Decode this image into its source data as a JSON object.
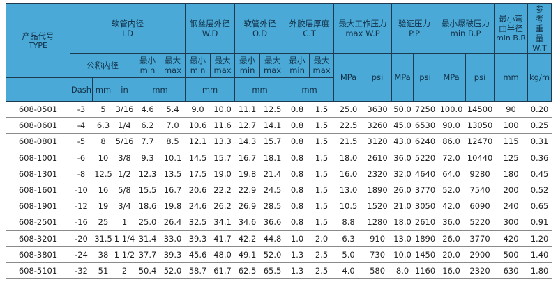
{
  "header": {
    "type_cn": "产品代号",
    "type_en": "TYPE",
    "id_cn": "软管内径",
    "id_en": "I.D",
    "wd_cn": "钢丝层外径",
    "wd_en": "W.D",
    "od_cn": "软管外径",
    "od_en": "O.D",
    "ct_cn": "外胶层厚度",
    "ct_en": "C.T",
    "wp_cn": "最大工作压力",
    "wp_en": "max W.P",
    "pp_cn": "验证压力",
    "pp_en": "P.P",
    "bp_cn": "最小爆破压力",
    "bp_en": "min B.P",
    "br_cn": "最小弯曲半径",
    "br_en": "min B.R",
    "wt_cn": "参考重量",
    "wt_en": "W.T",
    "nominal_cn": "公称内径",
    "min_cn": "最小",
    "min_en": "min",
    "max_cn": "最大",
    "max_en": "max",
    "dash": "Dash",
    "mm": "mm",
    "in": "in",
    "mpa": "MPa",
    "psi": "psi",
    "kgm": "kg/m"
  },
  "rows": [
    [
      "608-0501",
      "-3",
      "5",
      "3/16",
      "4.6",
      "5.4",
      "9.0",
      "10.0",
      "11.1",
      "12.5",
      "0.8",
      "1.5",
      "25.0",
      "3630",
      "50.0",
      "7250",
      "100.0",
      "14500",
      "90",
      "0.20"
    ],
    [
      "608-0601",
      "-4",
      "6.3",
      "1/4",
      "6.2",
      "7.0",
      "10.6",
      "11.6",
      "12.7",
      "14.1",
      "0.8",
      "1.5",
      "22.5",
      "3260",
      "45.0",
      "6530",
      "90.0",
      "13050",
      "100",
      "0.25"
    ],
    [
      "608-0801",
      "-5",
      "8",
      "5/16",
      "7.7",
      "8.5",
      "12.1",
      "13.3",
      "14.3",
      "15.7",
      "0.8",
      "1.5",
      "21.5",
      "3120",
      "43.0",
      "6240",
      "86.0",
      "12470",
      "115",
      "0.31"
    ],
    [
      "608-1001",
      "-6",
      "10",
      "3/8",
      "9.3",
      "10.1",
      "14.5",
      "15.7",
      "16.7",
      "18.1",
      "0.8",
      "1.5",
      "18.0",
      "2610",
      "36.0",
      "5220",
      "72.0",
      "10440",
      "125",
      "0.36"
    ],
    [
      "608-1301",
      "-8",
      "12.5",
      "1/2",
      "12.3",
      "13.5",
      "17.5",
      "19.0",
      "19.8",
      "21.4",
      "0.8",
      "1.5",
      "16.0",
      "2320",
      "32.0",
      "4640",
      "64.0",
      "9280",
      "180",
      "0.45"
    ],
    [
      "608-1601",
      "-10",
      "16",
      "5/8",
      "15.5",
      "16.7",
      "20.6",
      "22.2",
      "22.9",
      "24.5",
      "0.8",
      "1.5",
      "13.0",
      "1890",
      "26.0",
      "3770",
      "52.0",
      "7540",
      "200",
      "0.52"
    ],
    [
      "608-1901",
      "-12",
      "19",
      "3/4",
      "18.6",
      "19.8",
      "24.6",
      "26.2",
      "26.9",
      "28.5",
      "0.8",
      "1.5",
      "10.5",
      "1520",
      "21.0",
      "3050",
      "42.0",
      "6090",
      "240",
      "0.65"
    ],
    [
      "608-2501",
      "-16",
      "25",
      "1",
      "25.0",
      "26.4",
      "32.5",
      "34.1",
      "34.6",
      "36.6",
      "0.8",
      "1.5",
      "8.8",
      "1280",
      "18.0",
      "2610",
      "36.0",
      "5220",
      "300",
      "0.91"
    ],
    [
      "608-3201",
      "-20",
      "31.5",
      "1 1/4",
      "31.4",
      "33.0",
      "39.3",
      "41.7",
      "42.2",
      "44.8",
      "1.0",
      "2.0",
      "6.3",
      "910",
      "13.0",
      "1890",
      "26.0",
      "3770",
      "420",
      "1.20"
    ],
    [
      "608-3801",
      "-24",
      "38",
      "1 1/2",
      "37.7",
      "39.3",
      "45.6",
      "48.0",
      "49.1",
      "52.0",
      "1.3",
      "2.5",
      "5.0",
      "730",
      "10.0",
      "1450",
      "20.0",
      "2900",
      "500",
      "1.40"
    ],
    [
      "608-5101",
      "-32",
      "51",
      "2",
      "50.4",
      "52.0",
      "58.7",
      "61.7",
      "62.5",
      "65.5",
      "1.3",
      "2.5",
      "4.0",
      "580",
      "8.0",
      "1160",
      "16.0",
      "2320",
      "630",
      "1.80"
    ]
  ]
}
